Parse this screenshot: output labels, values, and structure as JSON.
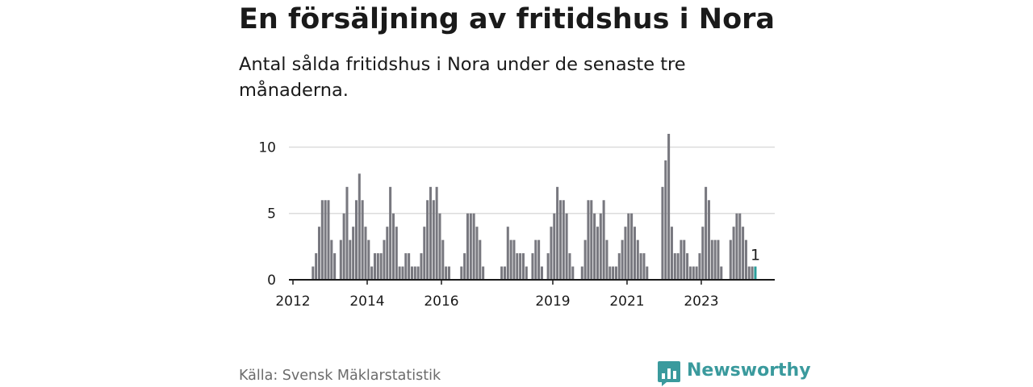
{
  "title": "En försäljning av fritidshus i Nora",
  "subtitle": "Antal sålda fritidshus i Nora under de senaste tre månaderna.",
  "source": "Källa: Svensk Mäklarstatistik",
  "brand": {
    "name": "Newsworthy",
    "icon": "newsworthy-logo-icon",
    "color": "#3a9a9d"
  },
  "colors": {
    "bar": "#78787f",
    "highlight": "#2a9d9a",
    "grid": "#dcdcdc",
    "axis": "#1a1a1a"
  },
  "chart_data": {
    "type": "bar",
    "title": "En försäljning av fritidshus i Nora",
    "xlabel": "",
    "ylabel": "",
    "ylim": [
      0,
      11
    ],
    "yticks": [
      0,
      5,
      10
    ],
    "xtick_labels": [
      "2012",
      "2014",
      "2016",
      "2019",
      "2021",
      "2023"
    ],
    "start_month": "2012-01",
    "grid": true,
    "legend": "none",
    "highlight_label": "1",
    "values": [
      0,
      0,
      0,
      0,
      0,
      0,
      1,
      2,
      4,
      6,
      6,
      6,
      3,
      2,
      0,
      3,
      5,
      7,
      3,
      4,
      6,
      8,
      6,
      4,
      3,
      1,
      2,
      2,
      2,
      3,
      4,
      7,
      5,
      4,
      1,
      1,
      2,
      2,
      1,
      1,
      1,
      2,
      4,
      6,
      7,
      6,
      7,
      5,
      3,
      1,
      1,
      0,
      0,
      0,
      1,
      2,
      5,
      5,
      5,
      4,
      3,
      1,
      0,
      0,
      0,
      0,
      0,
      1,
      1,
      4,
      3,
      3,
      2,
      2,
      2,
      1,
      0,
      2,
      3,
      3,
      1,
      0,
      2,
      4,
      5,
      7,
      6,
      6,
      5,
      2,
      1,
      0,
      0,
      1,
      3,
      6,
      6,
      5,
      4,
      5,
      6,
      3,
      1,
      1,
      1,
      2,
      3,
      4,
      5,
      5,
      4,
      3,
      2,
      2,
      1,
      0,
      0,
      0,
      0,
      7,
      9,
      11,
      4,
      2,
      2,
      3,
      3,
      2,
      1,
      1,
      1,
      2,
      4,
      7,
      6,
      3,
      3,
      3,
      1,
      0,
      0,
      3,
      4,
      5,
      5,
      4,
      3,
      1,
      1,
      1
    ]
  }
}
